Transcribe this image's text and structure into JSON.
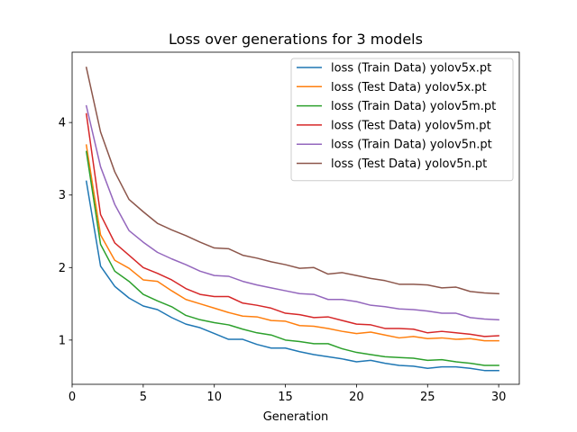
{
  "chart_data": {
    "type": "line",
    "title": "Loss over generations for 3 models",
    "xlabel": "Generation",
    "ylabel": "",
    "xlim": [
      0,
      31.45
    ],
    "ylim": [
      0.39,
      4.97
    ],
    "xticks": [
      0,
      5,
      10,
      15,
      20,
      25,
      30
    ],
    "yticks": [
      1,
      2,
      3,
      4
    ],
    "grid": false,
    "legend_position": "top-right",
    "x": [
      1,
      2,
      3,
      4,
      5,
      6,
      7,
      8,
      9,
      10,
      11,
      12,
      13,
      14,
      15,
      16,
      17,
      18,
      19,
      20,
      21,
      22,
      23,
      24,
      25,
      26,
      27,
      28,
      29,
      30
    ],
    "series": [
      {
        "name": "loss (Train Data) yolov5x.pt",
        "color": "#1f77b4",
        "values": [
          3.19,
          2.02,
          1.74,
          1.58,
          1.47,
          1.42,
          1.31,
          1.22,
          1.17,
          1.09,
          1.01,
          1.01,
          0.94,
          0.89,
          0.89,
          0.84,
          0.8,
          0.77,
          0.74,
          0.7,
          0.72,
          0.68,
          0.65,
          0.64,
          0.61,
          0.63,
          0.63,
          0.61,
          0.58,
          0.58
        ]
      },
      {
        "name": "loss (Test Data) yolov5x.pt",
        "color": "#ff7f0e",
        "values": [
          3.69,
          2.45,
          2.1,
          1.99,
          1.83,
          1.81,
          1.68,
          1.56,
          1.5,
          1.44,
          1.38,
          1.33,
          1.32,
          1.27,
          1.26,
          1.2,
          1.19,
          1.16,
          1.12,
          1.09,
          1.11,
          1.07,
          1.03,
          1.05,
          1.02,
          1.03,
          1.01,
          1.02,
          0.99,
          0.99
        ]
      },
      {
        "name": "loss (Train Data) yolov5m.pt",
        "color": "#2ca02c",
        "values": [
          3.6,
          2.32,
          1.95,
          1.81,
          1.63,
          1.54,
          1.46,
          1.34,
          1.28,
          1.24,
          1.21,
          1.15,
          1.1,
          1.07,
          1.0,
          0.98,
          0.95,
          0.95,
          0.88,
          0.83,
          0.8,
          0.77,
          0.76,
          0.75,
          0.72,
          0.73,
          0.7,
          0.68,
          0.65,
          0.65
        ]
      },
      {
        "name": "loss (Test Data) yolov5m.pt",
        "color": "#d62728",
        "values": [
          4.12,
          2.73,
          2.34,
          2.17,
          2.0,
          1.92,
          1.83,
          1.71,
          1.63,
          1.6,
          1.6,
          1.51,
          1.48,
          1.44,
          1.37,
          1.35,
          1.31,
          1.32,
          1.27,
          1.22,
          1.21,
          1.16,
          1.16,
          1.15,
          1.1,
          1.12,
          1.1,
          1.08,
          1.05,
          1.06
        ]
      },
      {
        "name": "loss (Train Data) yolov5n.pt",
        "color": "#9467bd",
        "values": [
          4.23,
          3.39,
          2.87,
          2.51,
          2.35,
          2.21,
          2.12,
          2.04,
          1.95,
          1.89,
          1.88,
          1.81,
          1.76,
          1.72,
          1.68,
          1.64,
          1.63,
          1.56,
          1.56,
          1.53,
          1.48,
          1.46,
          1.43,
          1.42,
          1.4,
          1.37,
          1.37,
          1.31,
          1.29,
          1.28
        ]
      },
      {
        "name": "loss (Test Data) yolov5n.pt",
        "color": "#8c564b",
        "values": [
          4.76,
          3.87,
          3.32,
          2.94,
          2.77,
          2.61,
          2.52,
          2.44,
          2.35,
          2.27,
          2.26,
          2.17,
          2.13,
          2.08,
          2.04,
          1.99,
          2.0,
          1.91,
          1.93,
          1.89,
          1.85,
          1.82,
          1.77,
          1.77,
          1.76,
          1.72,
          1.73,
          1.67,
          1.65,
          1.64
        ]
      }
    ]
  }
}
